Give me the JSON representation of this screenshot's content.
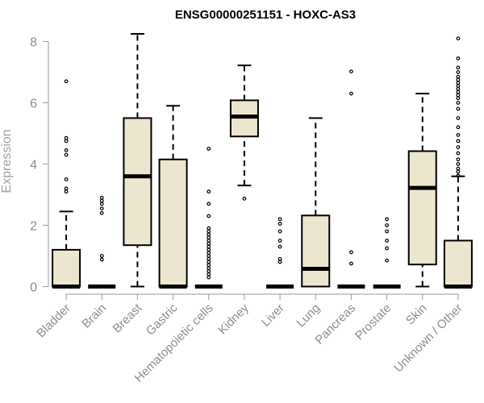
{
  "chart_data": {
    "type": "boxplot",
    "title": "ENSG00000251151 - HOXC-AS3",
    "xlabel": "",
    "ylabel": "Expression",
    "ylim": [
      0,
      8.4
    ],
    "yticks": [
      0,
      2,
      4,
      6,
      8
    ],
    "box_fill": "#ede6cf",
    "categories": [
      "Bladder",
      "Brain",
      "Breast",
      "Gastric",
      "Hematopoietic cells",
      "Kidney",
      "Liver",
      "Lung",
      "Pancreas",
      "Prostate",
      "Skin",
      "Unknown / Other"
    ],
    "boxes": [
      {
        "name": "Bladder",
        "min": 0,
        "q1": 0,
        "median": 0,
        "q3": 1.2,
        "max": 2.45,
        "outliers": [
          3.1,
          3.2,
          3.5,
          4.3,
          4.45,
          4.75,
          4.85,
          6.7
        ]
      },
      {
        "name": "Brain",
        "min": 0,
        "q1": 0,
        "median": 0,
        "q3": 0,
        "max": 0,
        "outliers": [
          0.88,
          1.0,
          2.4,
          2.55,
          2.7,
          2.8,
          2.9
        ]
      },
      {
        "name": "Breast",
        "min": 0,
        "q1": 1.35,
        "median": 3.6,
        "q3": 5.5,
        "max": 8.25,
        "outliers": []
      },
      {
        "name": "Gastric",
        "min": 0,
        "q1": 0,
        "median": 0,
        "q3": 4.15,
        "max": 5.9,
        "outliers": []
      },
      {
        "name": "Hematopoietic cells",
        "min": 0,
        "q1": 0,
        "median": 0,
        "q3": 0,
        "max": 0,
        "outliers": [
          0.3,
          0.4,
          0.5,
          0.6,
          0.7,
          0.8,
          0.9,
          1.0,
          1.1,
          1.2,
          1.3,
          1.4,
          1.5,
          1.6,
          1.7,
          1.8,
          1.9,
          2.3,
          2.7,
          3.1,
          4.5
        ]
      },
      {
        "name": "Kidney",
        "min": 3.3,
        "q1": 4.9,
        "median": 5.55,
        "q3": 6.08,
        "max": 7.22,
        "outliers": [
          2.87
        ]
      },
      {
        "name": "Liver",
        "min": 0,
        "q1": 0,
        "median": 0,
        "q3": 0,
        "max": 0,
        "outliers": [
          0.8,
          0.9,
          1.3,
          1.5,
          1.8,
          2.05,
          2.2
        ]
      },
      {
        "name": "Lung",
        "min": 0,
        "q1": 0,
        "median": 0.58,
        "q3": 2.32,
        "max": 5.5,
        "outliers": []
      },
      {
        "name": "Pancreas",
        "min": 0,
        "q1": 0,
        "median": 0,
        "q3": 0,
        "max": 0,
        "outliers": [
          0.75,
          1.12,
          6.3,
          7.02
        ]
      },
      {
        "name": "Prostate",
        "min": 0,
        "q1": 0,
        "median": 0,
        "q3": 0,
        "max": 0,
        "outliers": [
          0.85,
          1.25,
          1.5,
          1.8,
          2.0,
          2.2
        ]
      },
      {
        "name": "Skin",
        "min": 0,
        "q1": 0.72,
        "median": 3.22,
        "q3": 4.42,
        "max": 6.3,
        "outliers": []
      },
      {
        "name": "Unknown / Other",
        "min": 0,
        "q1": 0,
        "median": 0,
        "q3": 1.5,
        "max": 3.6,
        "outliers": [
          3.62,
          3.75,
          3.85,
          4.0,
          4.15,
          4.35,
          4.55,
          4.75,
          4.95,
          5.2,
          5.5,
          5.8,
          6.0,
          6.15,
          6.25,
          6.35,
          6.45,
          6.55,
          6.65,
          6.75,
          6.85,
          7.0,
          7.15,
          7.45,
          8.1
        ]
      }
    ]
  }
}
